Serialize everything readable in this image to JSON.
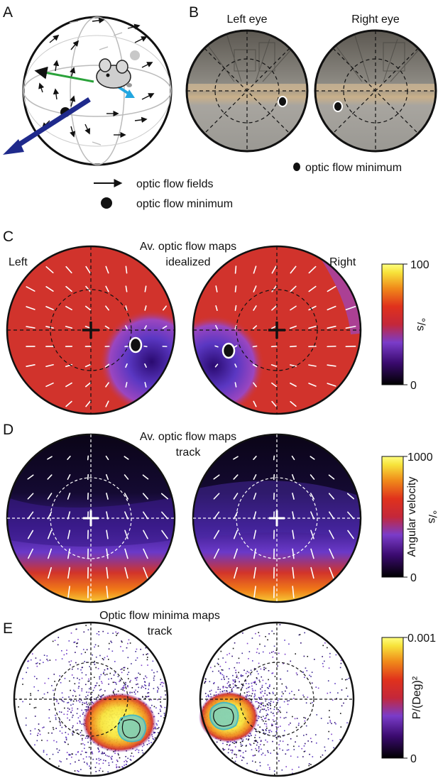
{
  "panel_a": {
    "letter": "A",
    "legend": {
      "flow_fields": "optic flow fields",
      "minimum": "optic flow minimum"
    }
  },
  "panel_b": {
    "letter": "B",
    "left_label": "Left eye",
    "right_label": "Right eye",
    "legend": "optic flow minimum"
  },
  "panel_c": {
    "letter": "C",
    "title_line1": "Av. optic flow maps",
    "title_line2": "idealized",
    "left_label": "Left",
    "right_label": "Right",
    "colorbar": {
      "max": "100",
      "min": "0",
      "unit": "°/s",
      "colors": [
        "#000000",
        "#3a0a6e",
        "#7a3cc9",
        "#c4273a",
        "#e3331f",
        "#f08a1a",
        "#f7e23a",
        "#ffff80"
      ]
    }
  },
  "panel_d": {
    "letter": "D",
    "title_line1": "Av. optic flow maps",
    "title_line2": "track",
    "colorbar": {
      "max": "1000",
      "min": "0",
      "label": "Angular velocity",
      "unit": "°/s"
    }
  },
  "panel_e": {
    "letter": "E",
    "title_line1": "Optic flow minima maps",
    "title_line2": "track",
    "colorbar": {
      "max": "0.001",
      "min": "0",
      "unit": "P/(Deg)²"
    }
  }
}
